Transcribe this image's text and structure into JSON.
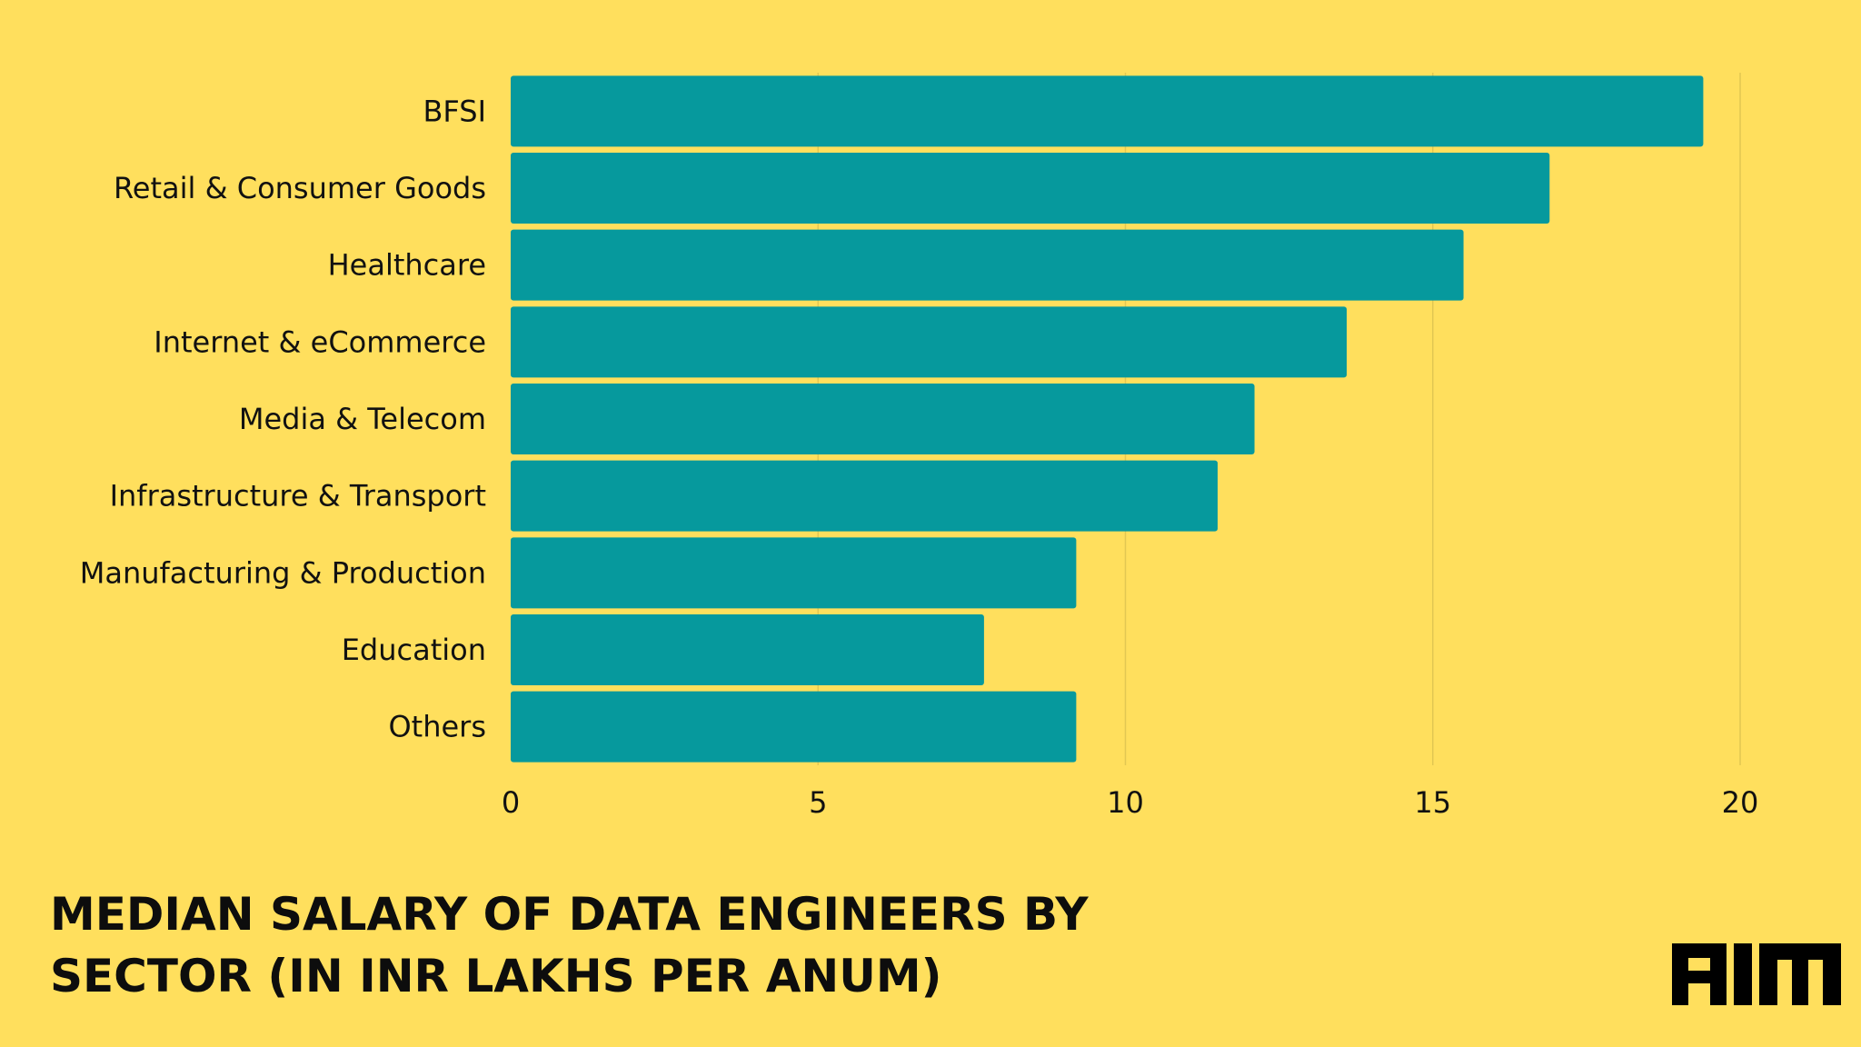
{
  "colors": {
    "background": "#FFDF5D",
    "bar": "#06999D",
    "grid": "#E2C752",
    "text": "#111111"
  },
  "chart_data": {
    "type": "bar",
    "orientation": "horizontal",
    "title": "MEDIAN SALARY OF DATA ENGINEERS BY SECTOR (IN INR LAKHS PER ANUM)",
    "categories": [
      "BFSI",
      "Retail & Consumer Goods",
      "Healthcare",
      "Internet & eCommerce",
      "Media & Telecom",
      "Infrastructure & Transport",
      "Manufacturing & Production",
      "Education",
      "Others"
    ],
    "values": [
      19.4,
      16.9,
      15.5,
      13.6,
      12.1,
      11.5,
      9.2,
      7.7,
      9.2
    ],
    "xlim": [
      0,
      20
    ],
    "xticks": [
      0,
      5,
      10,
      15,
      20
    ],
    "xlabel": "",
    "ylabel": "",
    "grid": true,
    "legend": "none"
  },
  "branding": {
    "logo_name": "AIM"
  }
}
